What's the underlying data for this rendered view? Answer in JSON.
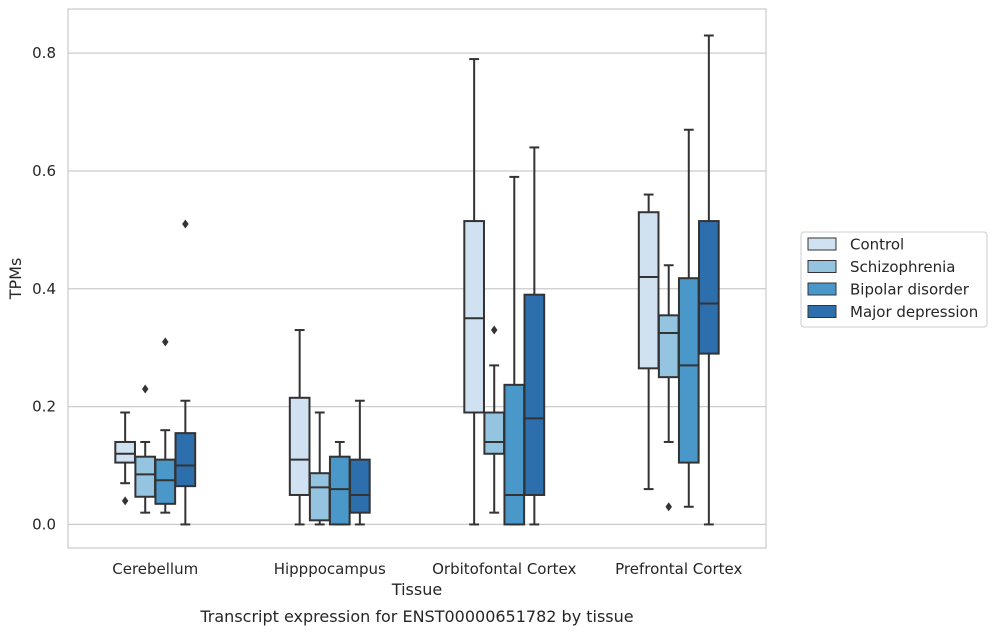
{
  "chart_data": {
    "type": "box",
    "caption": "Transcript expression for ENST00000651782 by tissue",
    "xlabel": "Tissue",
    "ylabel": "TPMs",
    "ylim": [
      -0.04,
      0.875
    ],
    "yticks": [
      0.0,
      0.2,
      0.4,
      0.6,
      0.8
    ],
    "ytick_labels": [
      "0.0",
      "0.2",
      "0.4",
      "0.6",
      "0.8"
    ],
    "grid": "horizontal",
    "legend_position": "right",
    "categories": [
      "Cerebellum",
      "Hipppocampus",
      "Orbitofontal Cortex",
      "Prefrontal Cortex"
    ],
    "colors": [
      "#d0e1f2",
      "#94c4df",
      "#4a98c9",
      "#2d6fad"
    ],
    "line_color": "#333333",
    "series": [
      {
        "name": "Control",
        "boxes": [
          {
            "whislo": 0.07,
            "q1": 0.105,
            "med": 0.12,
            "q3": 0.14,
            "whishi": 0.19,
            "fliers": [
              0.04
            ]
          },
          {
            "whislo": 0.0,
            "q1": 0.05,
            "med": 0.11,
            "q3": 0.215,
            "whishi": 0.33,
            "fliers": []
          },
          {
            "whislo": 0.0,
            "q1": 0.19,
            "med": 0.35,
            "q3": 0.515,
            "whishi": 0.79,
            "fliers": []
          },
          {
            "whislo": 0.06,
            "q1": 0.265,
            "med": 0.42,
            "q3": 0.53,
            "whishi": 0.56,
            "fliers": []
          }
        ]
      },
      {
        "name": "Schizophrenia",
        "boxes": [
          {
            "whislo": 0.02,
            "q1": 0.047,
            "med": 0.085,
            "q3": 0.115,
            "whishi": 0.14,
            "fliers": [
              0.23
            ]
          },
          {
            "whislo": 0.0,
            "q1": 0.007,
            "med": 0.063,
            "q3": 0.087,
            "whishi": 0.19,
            "fliers": []
          },
          {
            "whislo": 0.02,
            "q1": 0.12,
            "med": 0.14,
            "q3": 0.19,
            "whishi": 0.27,
            "fliers": [
              0.33
            ]
          },
          {
            "whislo": 0.14,
            "q1": 0.25,
            "med": 0.325,
            "q3": 0.355,
            "whishi": 0.44,
            "fliers": [
              0.03
            ]
          }
        ]
      },
      {
        "name": "Bipolar disorder",
        "boxes": [
          {
            "whislo": 0.02,
            "q1": 0.035,
            "med": 0.075,
            "q3": 0.11,
            "whishi": 0.16,
            "fliers": [
              0.31
            ]
          },
          {
            "whislo": 0.0,
            "q1": 0.0,
            "med": 0.06,
            "q3": 0.115,
            "whishi": 0.14,
            "fliers": []
          },
          {
            "whislo": 0.0,
            "q1": 0.0,
            "med": 0.05,
            "q3": 0.237,
            "whishi": 0.59,
            "fliers": []
          },
          {
            "whislo": 0.03,
            "q1": 0.105,
            "med": 0.27,
            "q3": 0.418,
            "whishi": 0.67,
            "fliers": []
          }
        ]
      },
      {
        "name": "Major depression",
        "boxes": [
          {
            "whislo": 0.0,
            "q1": 0.065,
            "med": 0.1,
            "q3": 0.155,
            "whishi": 0.21,
            "fliers": [
              0.51
            ]
          },
          {
            "whislo": 0.0,
            "q1": 0.02,
            "med": 0.05,
            "q3": 0.11,
            "whishi": 0.21,
            "fliers": []
          },
          {
            "whislo": 0.0,
            "q1": 0.05,
            "med": 0.18,
            "q3": 0.39,
            "whishi": 0.64,
            "fliers": []
          },
          {
            "whislo": 0.0,
            "q1": 0.29,
            "med": 0.375,
            "q3": 0.515,
            "whishi": 0.83,
            "fliers": []
          }
        ]
      }
    ]
  }
}
